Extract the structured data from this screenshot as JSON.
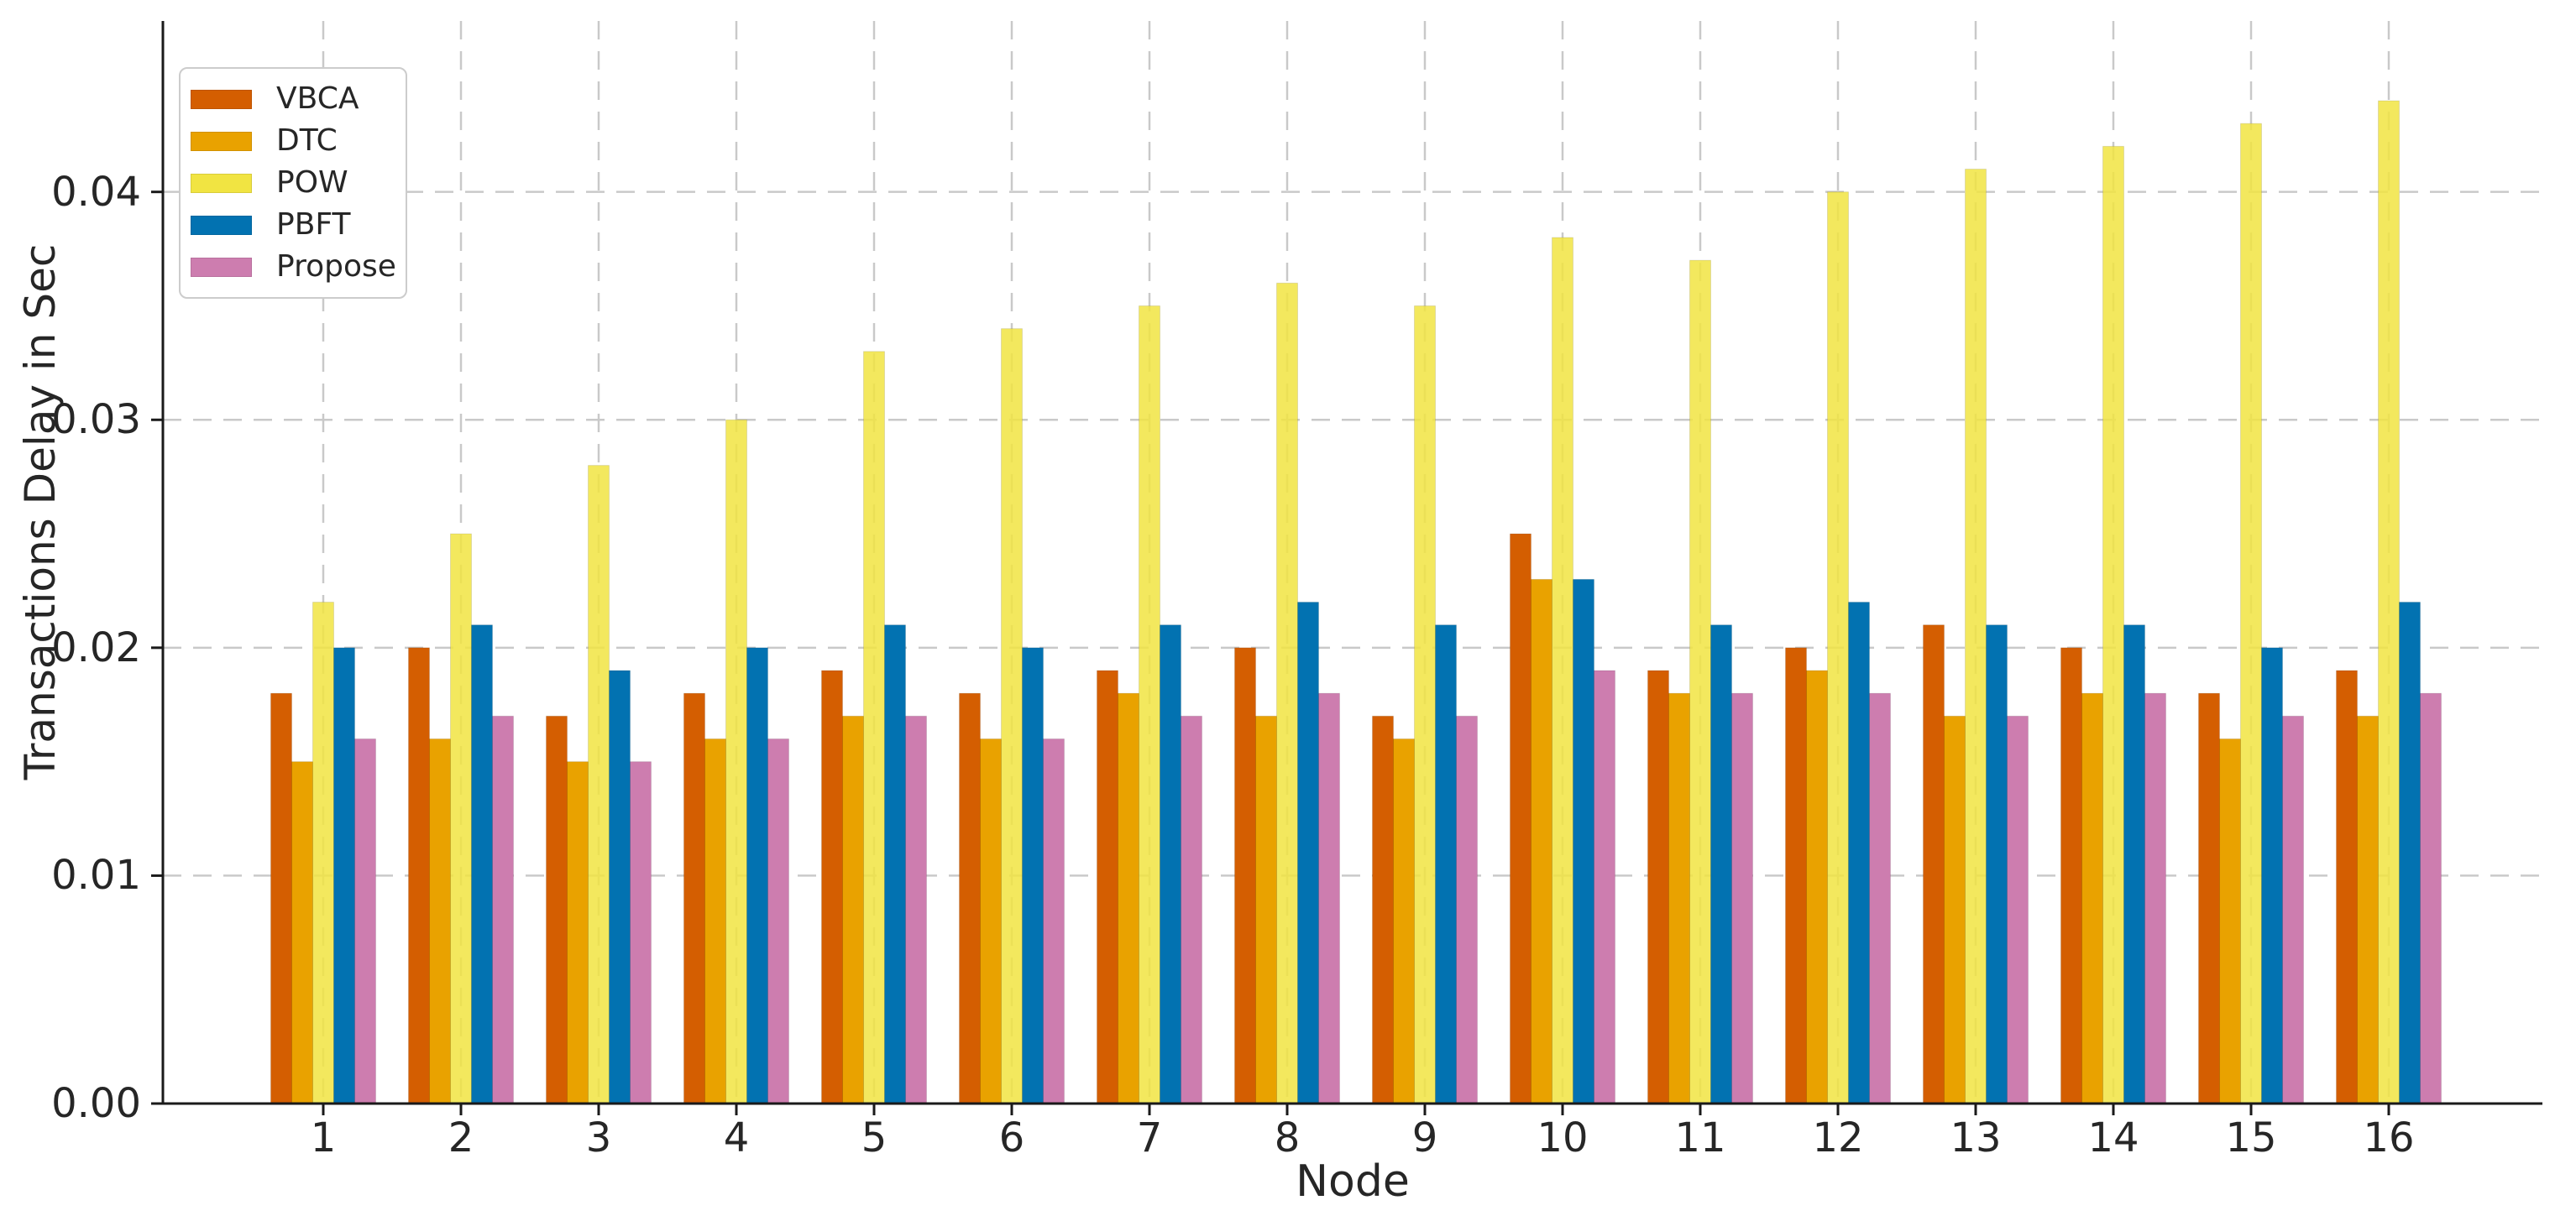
{
  "figure": {
    "background": "#ffffff",
    "text_color": "#262626",
    "spine_color": "#1a1a1a",
    "grid_color": "#c9c9c9",
    "legend_border_color": "#cccccc"
  },
  "chart_data": {
    "type": "bar",
    "title": "",
    "xlabel": "Node",
    "ylabel": "Transactions Delay in Sec",
    "categories": [
      "1",
      "2",
      "3",
      "4",
      "5",
      "6",
      "7",
      "8",
      "9",
      "10",
      "11",
      "12",
      "13",
      "14",
      "15",
      "16"
    ],
    "series": [
      {
        "name": "VBCA",
        "color": "#d45e01",
        "values": [
          0.018,
          0.02,
          0.017,
          0.018,
          0.019,
          0.018,
          0.019,
          0.02,
          0.017,
          0.025,
          0.019,
          0.02,
          0.021,
          0.02,
          0.018,
          0.019
        ]
      },
      {
        "name": "DTC",
        "color": "#e9a200",
        "values": [
          0.015,
          0.016,
          0.015,
          0.016,
          0.017,
          0.016,
          0.018,
          0.017,
          0.016,
          0.023,
          0.018,
          0.019,
          0.017,
          0.018,
          0.016,
          0.017
        ]
      },
      {
        "name": "POW",
        "color": "#f1e442",
        "values": [
          0.022,
          0.025,
          0.028,
          0.03,
          0.033,
          0.034,
          0.035,
          0.036,
          0.035,
          0.038,
          0.037,
          0.04,
          0.041,
          0.042,
          0.043,
          0.044
        ]
      },
      {
        "name": "PBFT",
        "color": "#0272b1",
        "values": [
          0.02,
          0.021,
          0.019,
          0.02,
          0.021,
          0.02,
          0.021,
          0.022,
          0.021,
          0.023,
          0.021,
          0.022,
          0.021,
          0.021,
          0.02,
          0.022
        ]
      },
      {
        "name": "Propose",
        "color": "#cd7daf",
        "values": [
          0.016,
          0.017,
          0.015,
          0.016,
          0.017,
          0.016,
          0.017,
          0.018,
          0.017,
          0.019,
          0.018,
          0.018,
          0.017,
          0.018,
          0.017,
          0.018
        ]
      }
    ],
    "ylim": [
      0,
      0.0475
    ],
    "yticks": [
      "0.00",
      "0.01",
      "0.02",
      "0.03",
      "0.04"
    ],
    "grid": "dashed, horizontal and vertical, behind bars",
    "legend_position": "upper-left"
  }
}
